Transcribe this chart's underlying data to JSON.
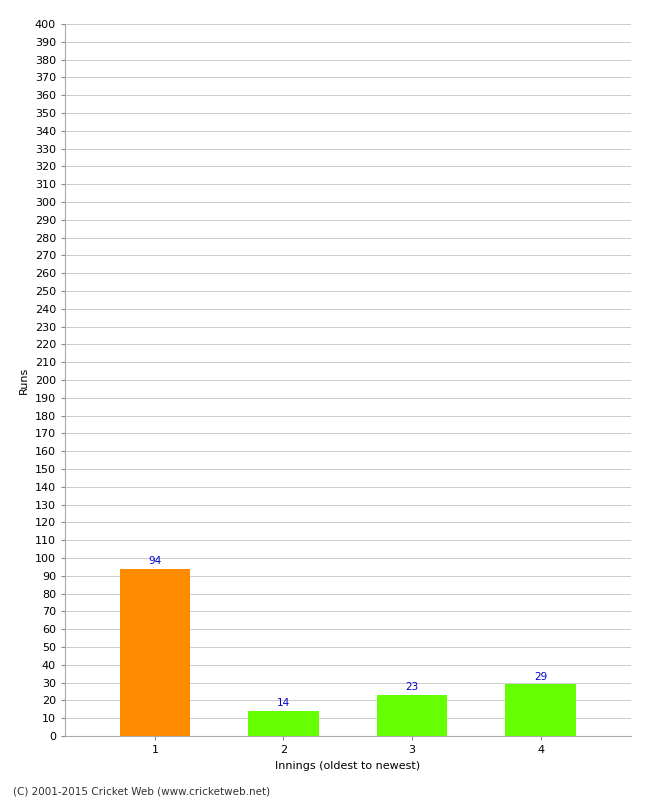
{
  "categories": [
    1,
    2,
    3,
    4
  ],
  "values": [
    94,
    14,
    23,
    29
  ],
  "bar_colors": [
    "#ff8c00",
    "#66ff00",
    "#66ff00",
    "#66ff00"
  ],
  "xlabel": "Innings (oldest to newest)",
  "ylabel": "Runs",
  "ylim": [
    0,
    400
  ],
  "ytick_step": 10,
  "background_color": "#ffffff",
  "grid_color": "#cccccc",
  "footer": "(C) 2001-2015 Cricket Web (www.cricketweb.net)",
  "value_color": "#0000cc",
  "value_fontsize": 7.5,
  "axis_fontsize": 8,
  "label_fontsize": 8,
  "footer_fontsize": 7.5,
  "bar_width": 0.55
}
